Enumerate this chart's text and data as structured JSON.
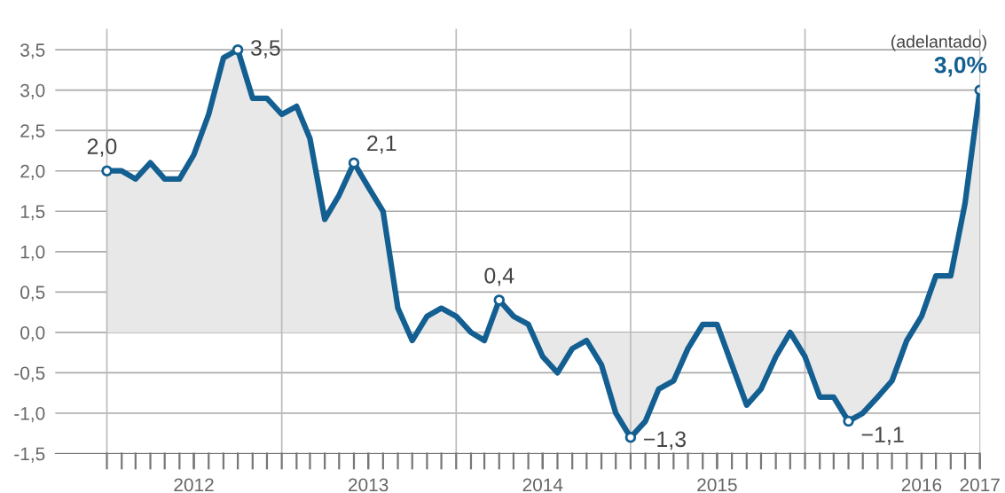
{
  "chart_data": {
    "type": "area",
    "x": [
      "2012-01",
      "2012-02",
      "2012-03",
      "2012-04",
      "2012-05",
      "2012-06",
      "2012-07",
      "2012-08",
      "2012-09",
      "2012-10",
      "2012-11",
      "2012-12",
      "2013-01",
      "2013-02",
      "2013-03",
      "2013-04",
      "2013-05",
      "2013-06",
      "2013-07",
      "2013-08",
      "2013-09",
      "2013-10",
      "2013-11",
      "2013-12",
      "2014-01",
      "2014-02",
      "2014-03",
      "2014-04",
      "2014-05",
      "2014-06",
      "2014-07",
      "2014-08",
      "2014-09",
      "2014-10",
      "2014-11",
      "2014-12",
      "2015-01",
      "2015-02",
      "2015-03",
      "2015-04",
      "2015-05",
      "2015-06",
      "2015-07",
      "2015-08",
      "2015-09",
      "2015-10",
      "2015-11",
      "2015-12",
      "2016-01",
      "2016-02",
      "2016-03",
      "2016-04",
      "2016-05",
      "2016-06",
      "2016-07",
      "2016-08",
      "2016-09",
      "2016-10",
      "2016-11",
      "2016-12",
      "2017-01"
    ],
    "series": [
      {
        "color": "#135f91",
        "values": [
          2.0,
          2.0,
          1.9,
          2.1,
          1.9,
          1.9,
          2.2,
          2.7,
          3.4,
          3.5,
          2.9,
          2.9,
          2.7,
          2.8,
          2.4,
          1.4,
          1.7,
          2.1,
          1.8,
          1.5,
          0.3,
          -0.1,
          0.2,
          0.3,
          0.2,
          0.0,
          -0.1,
          0.4,
          0.2,
          0.1,
          -0.3,
          -0.5,
          -0.2,
          -0.1,
          -0.4,
          -1.0,
          -1.3,
          -1.1,
          -0.7,
          -0.6,
          -0.2,
          0.1,
          0.1,
          -0.4,
          -0.9,
          -0.7,
          -0.3,
          0.0,
          -0.3,
          -0.8,
          -0.8,
          -1.1,
          -1.0,
          -0.8,
          -0.6,
          -0.1,
          0.2,
          0.7,
          0.7,
          1.6,
          3.0
        ]
      }
    ],
    "xlim": [
      "2011-09-15",
      "2017-01-01"
    ],
    "xticks": [
      {
        "value": "2012-07",
        "label": "2012"
      },
      {
        "value": "2013-07",
        "label": "2013"
      },
      {
        "value": "2014-07",
        "label": "2014"
      },
      {
        "value": "2015-07",
        "label": "2015"
      },
      {
        "value": "2016-09",
        "label": "2016"
      },
      {
        "value": "2017-01",
        "label": "2017"
      }
    ],
    "ylim": [
      -1.5,
      3.75
    ],
    "yticks": [
      {
        "value": -1.5,
        "label": "-1,5"
      },
      {
        "value": -1.0,
        "label": "-1,0"
      },
      {
        "value": -0.5,
        "label": "-0,5"
      },
      {
        "value": 0.0,
        "label": "0,0"
      },
      {
        "value": 0.5,
        "label": "0,5"
      },
      {
        "value": 1.0,
        "label": "1,0"
      },
      {
        "value": 1.5,
        "label": "1,5"
      },
      {
        "value": 2.0,
        "label": "2,0"
      },
      {
        "value": 2.5,
        "label": "2,5"
      },
      {
        "value": 3.0,
        "label": "3,0"
      },
      {
        "value": 3.5,
        "label": "3,5"
      }
    ],
    "grid": "y",
    "ref_lines": [
      {
        "axis": "x",
        "value": "2012-01",
        "color": "#bbbbbb"
      },
      {
        "axis": "x",
        "value": "2013-01",
        "color": "#bbbbbb"
      },
      {
        "axis": "x",
        "value": "2014-01",
        "color": "#bbbbbb"
      },
      {
        "axis": "x",
        "value": "2015-01",
        "color": "#bbbbbb"
      },
      {
        "axis": "x",
        "value": "2016-01",
        "color": "#bbbbbb"
      }
    ],
    "annotations": [
      {
        "text": "2,0",
        "x": "2012-01",
        "y": 2.0
      },
      {
        "text": "3,5",
        "x": "2012-10",
        "y": 3.5
      },
      {
        "text": "2,1",
        "x": "2013-06",
        "y": 2.1
      },
      {
        "text": "0,4",
        "x": "2014-04",
        "y": 0.4
      },
      {
        "text": "−1,3",
        "x": "2015-01",
        "y": -1.3
      },
      {
        "text": "−1,1",
        "x": "2016-04",
        "y": -1.1
      },
      {
        "text": "3,0%",
        "x": "2017-01",
        "y": 3.0
      },
      "(adelantado)"
    ]
  }
}
